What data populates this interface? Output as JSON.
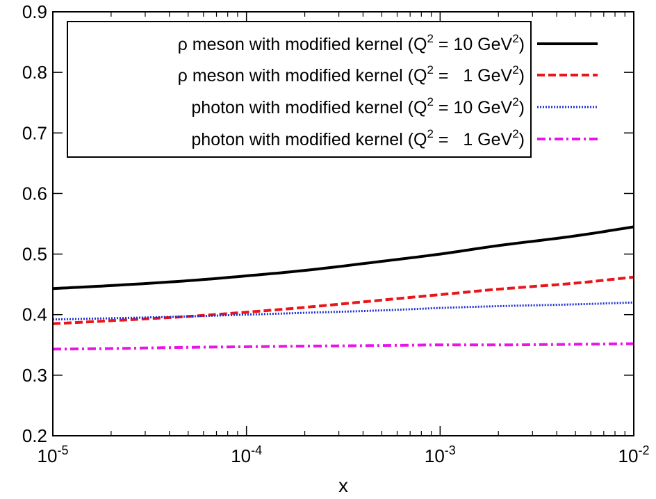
{
  "chart_data": {
    "type": "line",
    "xlabel": "x",
    "ylabel": "",
    "xscale": "log",
    "xlim": [
      1e-05,
      0.01
    ],
    "ylim": [
      0.2,
      0.9
    ],
    "grid": false,
    "legend_position": "top-right",
    "x_ticks": [
      {
        "value": 1e-05,
        "base": "10",
        "exp": "-5"
      },
      {
        "value": 0.0001,
        "base": "10",
        "exp": "-4"
      },
      {
        "value": 0.001,
        "base": "10",
        "exp": "-3"
      },
      {
        "value": 0.01,
        "base": "10",
        "exp": "-2"
      }
    ],
    "y_ticks": [
      {
        "value": 0.2,
        "label": "0.2"
      },
      {
        "value": 0.3,
        "label": "0.3"
      },
      {
        "value": 0.4,
        "label": "0.4"
      },
      {
        "value": 0.5,
        "label": "0.5"
      },
      {
        "value": 0.6,
        "label": "0.6"
      },
      {
        "value": 0.7,
        "label": "0.7"
      },
      {
        "value": 0.8,
        "label": "0.8"
      },
      {
        "value": 0.9,
        "label": "0.9"
      }
    ],
    "series": [
      {
        "name": "ρ meson with modified kernel (Q² = 10 GeV²)",
        "legend": {
          "prefix": "ρ meson with modified kernel (Q",
          "sup1": "2",
          "middle": " = 10 GeV",
          "sup2": "2",
          "suffix": ")"
        },
        "color": "#000000",
        "dash": "solid",
        "x": [
          1e-05,
          2e-05,
          5e-05,
          0.0001,
          0.0002,
          0.0005,
          0.001,
          0.002,
          0.005,
          0.01
        ],
        "y": [
          0.443,
          0.448,
          0.456,
          0.464,
          0.473,
          0.488,
          0.5,
          0.514,
          0.53,
          0.545
        ]
      },
      {
        "name": "ρ meson with modified kernel (Q² = 1 GeV²)",
        "legend": {
          "prefix": "ρ meson with modified kernel (Q",
          "sup1": "2",
          "middle": " =   1 GeV",
          "sup2": "2",
          "suffix": ")"
        },
        "color": "#e8151a",
        "dash": "dashed",
        "x": [
          1e-05,
          2e-05,
          5e-05,
          0.0001,
          0.0002,
          0.0005,
          0.001,
          0.002,
          0.005,
          0.01
        ],
        "y": [
          0.385,
          0.39,
          0.397,
          0.404,
          0.412,
          0.424,
          0.433,
          0.442,
          0.452,
          0.462
        ]
      },
      {
        "name": "photon with modified kernel (Q² = 10 GeV²)",
        "legend": {
          "prefix": "photon with modified kernel (Q",
          "sup1": "2",
          "middle": " = 10 GeV",
          "sup2": "2",
          "suffix": ")"
        },
        "color": "#1d2fd6",
        "dash": "dotted",
        "x": [
          1e-05,
          2e-05,
          5e-05,
          0.0001,
          0.0002,
          0.0005,
          0.001,
          0.002,
          0.005,
          0.01
        ],
        "y": [
          0.392,
          0.394,
          0.397,
          0.4,
          0.403,
          0.407,
          0.411,
          0.414,
          0.417,
          0.42
        ]
      },
      {
        "name": "photon with modified kernel (Q² = 1 GeV²)",
        "legend": {
          "prefix": "photon with modified kernel (Q",
          "sup1": "2",
          "middle": " =   1 GeV",
          "sup2": "2",
          "suffix": ")"
        },
        "color": "#e814e8",
        "dash": "dashdot",
        "x": [
          1e-05,
          2e-05,
          5e-05,
          0.0001,
          0.0002,
          0.0005,
          0.001,
          0.002,
          0.005,
          0.01
        ],
        "y": [
          0.343,
          0.344,
          0.346,
          0.347,
          0.348,
          0.349,
          0.35,
          0.35,
          0.351,
          0.352
        ]
      }
    ]
  }
}
